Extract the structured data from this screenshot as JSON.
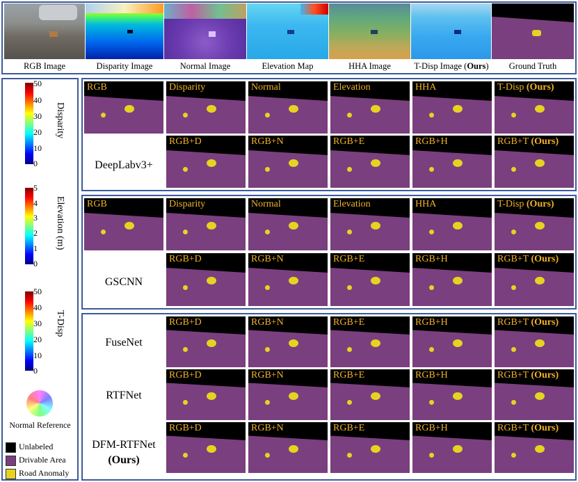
{
  "top_panel": {
    "captions": [
      "RGB Image",
      "Disparity Image",
      "Normal Image",
      "Elevation Map",
      "HHA Image",
      "T-Disp Image (",
      "Ours",
      ")",
      "Ground Truth"
    ]
  },
  "colorbars": {
    "disparity": {
      "title": "Disparity",
      "ticks": [
        "50",
        "40",
        "30",
        "20",
        "10",
        "0"
      ]
    },
    "elevation": {
      "title": "Elevation (m)",
      "ticks": [
        "5",
        "4",
        "3",
        "2",
        "1",
        "0"
      ]
    },
    "tdisp": {
      "title": "T-Disp",
      "ticks": [
        "50",
        "40",
        "30",
        "20",
        "10",
        "0"
      ]
    },
    "normal_ref": "Normal Reference"
  },
  "legend": [
    {
      "label": "Unlabeled",
      "color": "#000000"
    },
    {
      "label": "Drivable Area",
      "color": "#7a3f7e"
    },
    {
      "label": "Road Anomaly",
      "color": "#e6d321"
    }
  ],
  "blocks": [
    {
      "name": "DeepLabv3+",
      "row1": [
        "RGB",
        "Disparity",
        "Normal",
        "Elevation",
        "HHA",
        "T-Disp "
      ],
      "row2": [
        "RGB+D",
        "RGB+N",
        "RGB+E",
        "RGB+H",
        "RGB+T "
      ]
    },
    {
      "name": "GSCNN",
      "row1": [
        "RGB",
        "Disparity",
        "Normal",
        "Elevation",
        "HHA",
        "T-Disp "
      ],
      "row2": [
        "RGB+D",
        "RGB+N",
        "RGB+E",
        "RGB+H",
        "RGB+T "
      ]
    },
    {
      "names": [
        "FuseNet",
        "RTFNet",
        "DFM-RTFNet",
        "(Ours)"
      ],
      "row": [
        "RGB+D",
        "RGB+N",
        "RGB+E",
        "RGB+H",
        "RGB+T "
      ]
    }
  ],
  "ours_tag": "(Ours)"
}
